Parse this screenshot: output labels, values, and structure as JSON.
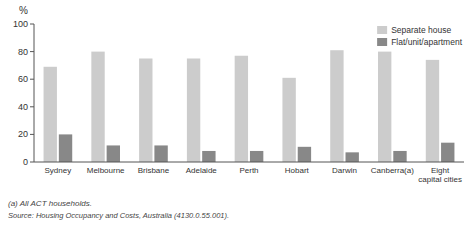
{
  "chart_data": {
    "type": "bar",
    "categories": [
      "Sydney",
      "Melbourne",
      "Brisbane",
      "Adelaide",
      "Perth",
      "Hobart",
      "Darwin",
      "Canberra(a)",
      "Eight\ncapital cities"
    ],
    "series": [
      {
        "name": "Separate house",
        "color": "#cccccc",
        "values": [
          69,
          80,
          75,
          75,
          77,
          61,
          81,
          80,
          74
        ]
      },
      {
        "name": "Flat/unit/apartment",
        "color": "#888888",
        "values": [
          20,
          12,
          12,
          8,
          8,
          11,
          7,
          8,
          14
        ]
      }
    ],
    "ylabel": "%",
    "ylim": [
      0,
      100
    ],
    "yticks": [
      0,
      20,
      40,
      60,
      80,
      100
    ],
    "grid": false,
    "legend": "upper right",
    "annotations": [
      "(a) All ACT households.",
      "Source: Housing Occupancy and Costs, Australia (4130.0.55.001)."
    ]
  }
}
